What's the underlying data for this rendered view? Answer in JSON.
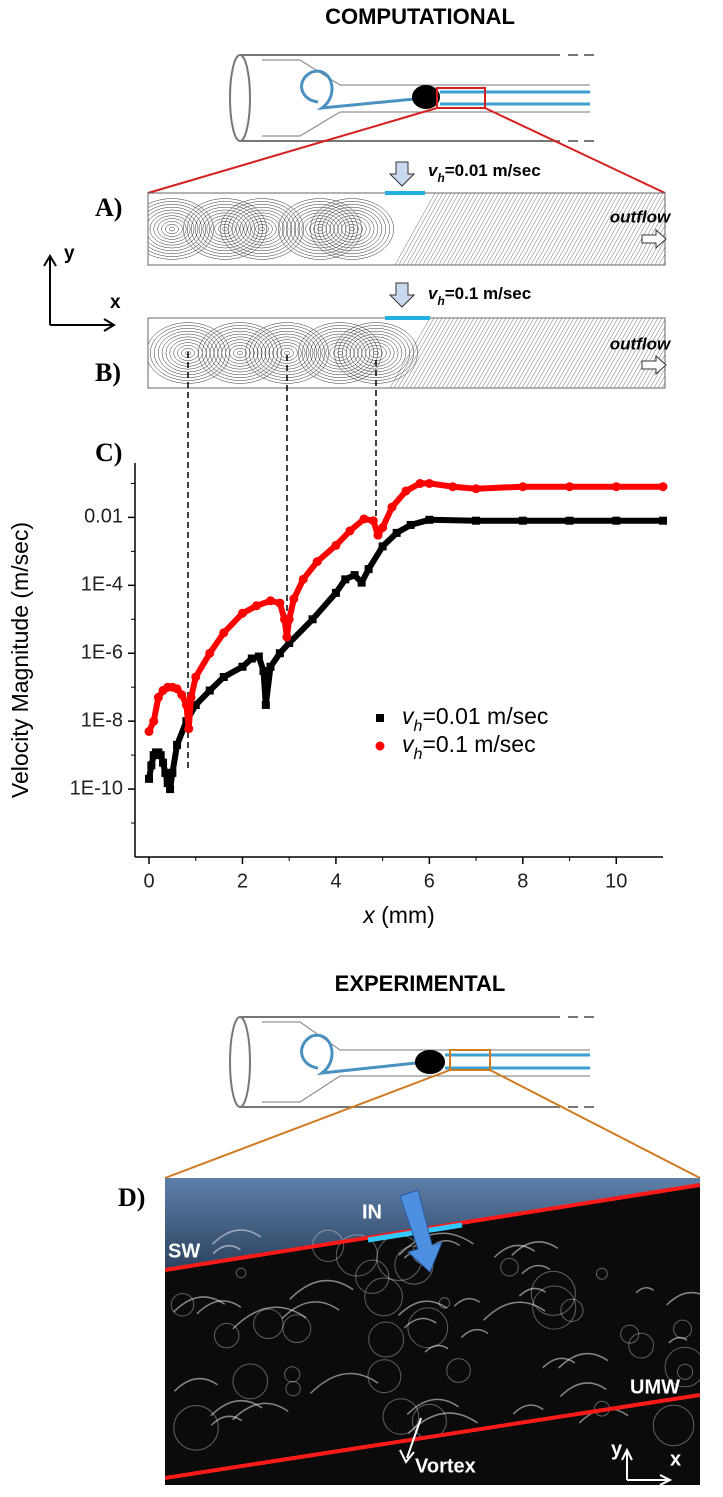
{
  "figure": {
    "computational": "COMPUTATIONAL",
    "experimental": "EXPERIMENTAL",
    "panel_a": {
      "label": "A)",
      "inlet": "vh=0.01 m/sec",
      "outflow": "outflow"
    },
    "panel_b": {
      "label": "B)",
      "inlet": "vh=0.1 m/sec",
      "outflow": "outflow"
    },
    "axes_hint": {
      "x": "x",
      "y": "y"
    },
    "panel_c": {
      "label": "C)"
    },
    "panel_d": {
      "label": "D)",
      "in": "IN",
      "sw": "SW",
      "umw": "UMW",
      "vortex": "Vortex",
      "x": "x",
      "y": "y"
    }
  },
  "chart_data": {
    "type": "scatter",
    "xlabel": "x (mm)",
    "ylabel": "Velocity Magnitude (m/sec)",
    "log_y": true,
    "legend": "center-right",
    "xlim": [
      -0.3,
      11
    ],
    "xticks": [
      0,
      2,
      4,
      6,
      8,
      10
    ],
    "ylim": [
      1e-12,
      0.4
    ],
    "yticks": [
      {
        "value": 1e-10,
        "label": "1E-10"
      },
      {
        "value": 1e-08,
        "label": "1E-8"
      },
      {
        "value": 1e-06,
        "label": "1E-6"
      },
      {
        "value": 0.0001,
        "label": "1E-4"
      },
      0.01
    ],
    "series": [
      {
        "name": "vh=0.01 m/sec",
        "color": "#000000",
        "marker": "square",
        "x": [
          0,
          0.05,
          0.1,
          0.15,
          0.2,
          0.25,
          0.3,
          0.35,
          0.4,
          0.45,
          0.5,
          0.6,
          0.8,
          1,
          1.3,
          1.6,
          2,
          2.2,
          2.35,
          2.45,
          2.5,
          2.6,
          2.8,
          3,
          3.5,
          4,
          4.2,
          4.4,
          4.55,
          4.7,
          5,
          5.3,
          5.6,
          6,
          7,
          8,
          9,
          10,
          11
        ],
        "values": [
          2e-10,
          5e-10,
          1e-09,
          1.2e-09,
          1.2e-09,
          1e-09,
          6e-10,
          3e-10,
          1.5e-10,
          1e-10,
          3e-10,
          2e-09,
          1e-08,
          3e-08,
          8e-08,
          2e-07,
          4e-07,
          7e-07,
          8e-07,
          3e-07,
          3e-08,
          4e-07,
          1e-06,
          2e-06,
          1e-05,
          6e-05,
          0.00015,
          0.0002,
          0.00012,
          0.0003,
          0.0014,
          0.0035,
          0.006,
          0.0085,
          0.008,
          0.008,
          0.008,
          0.008,
          0.008
        ]
      },
      {
        "name": "vh=0.1 m/sec",
        "color": "#ff0000",
        "marker": "circle",
        "x": [
          0,
          0.1,
          0.2,
          0.3,
          0.4,
          0.5,
          0.6,
          0.7,
          0.8,
          0.85,
          0.9,
          1,
          1.3,
          1.6,
          2,
          2.3,
          2.6,
          2.8,
          2.9,
          2.95,
          3,
          3.1,
          3.3,
          3.6,
          4,
          4.3,
          4.6,
          4.8,
          4.9,
          5,
          5.2,
          5.5,
          5.8,
          6,
          6.5,
          7,
          8,
          9,
          10,
          11
        ],
        "values": [
          5e-09,
          1e-08,
          5e-08,
          8e-08,
          1e-07,
          1e-07,
          9e-08,
          6e-08,
          3e-08,
          6e-09,
          5e-08,
          2e-07,
          1e-06,
          4e-06,
          1.5e-05,
          2.5e-05,
          3.5e-05,
          3e-05,
          1e-05,
          3e-06,
          1e-05,
          4e-05,
          0.00015,
          0.0005,
          0.0015,
          0.004,
          0.009,
          0.008,
          0.003,
          0.005,
          0.02,
          0.06,
          0.1,
          0.1,
          0.08,
          0.07,
          0.08,
          0.08,
          0.08,
          0.08
        ]
      }
    ]
  }
}
